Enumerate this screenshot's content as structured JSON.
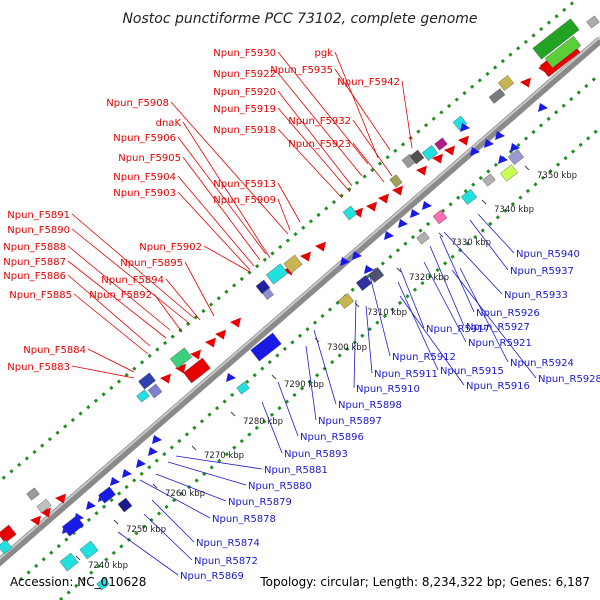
{
  "title": "Nostoc punctiforme PCC 73102, complete genome",
  "accession": "Accession: NC_010628",
  "summary": "Topology: circular; Length: 8,234,322 bp; Genes: 6,187",
  "kbp_labels": [
    "7240 kbp",
    "7250 kbp",
    "7260 kbp",
    "7270 kbp",
    "7280 kbp",
    "7290 kbp",
    "7300 kbp",
    "7310 kbp",
    "7320 kbp",
    "7330 kbp",
    "7340 kbp",
    "7350 kbp"
  ],
  "forward_labels": [
    "Npun_F5930",
    "pgk",
    "Npun_F5935",
    "Npun_F5922",
    "Npun_F5942",
    "Npun_F5920",
    "Npun_F5908",
    "Npun_F5919",
    "dnaK",
    "Npun_F5932",
    "Npun_F5918",
    "Npun_F5906",
    "Npun_F5923",
    "Npun_F5905",
    "Npun_F5904",
    "Npun_F5913",
    "Npun_F5903",
    "Npun_F5909",
    "Npun_F5891",
    "Npun_F5890",
    "Npun_F5888",
    "Npun_F5902",
    "Npun_F5887",
    "Npun_F5895",
    "Npun_F5886",
    "Npun_F5894",
    "Npun_F5892",
    "Npun_F5885",
    "Npun_F5884",
    "Npun_F5883"
  ],
  "reverse_labels": [
    "Npun_R5940",
    "Npun_R5937",
    "Npun_R5933",
    "Npun_R5926",
    "Npun_R5927",
    "Npun_R5917",
    "Npun_R5921",
    "Npun_R5924",
    "Npun_R5928",
    "Npun_R5912",
    "Npun_R5915",
    "Npun_R5911",
    "Npun_R5916",
    "Npun_R5910",
    "Npun_R5898",
    "Npun_R5897",
    "Npun_R5896",
    "Npun_R5893",
    "Npun_R5881",
    "Npun_R5880",
    "Npun_R5879",
    "Npun_R5878",
    "Npun_R5874",
    "Npun_R5872",
    "Npun_R5869"
  ]
}
